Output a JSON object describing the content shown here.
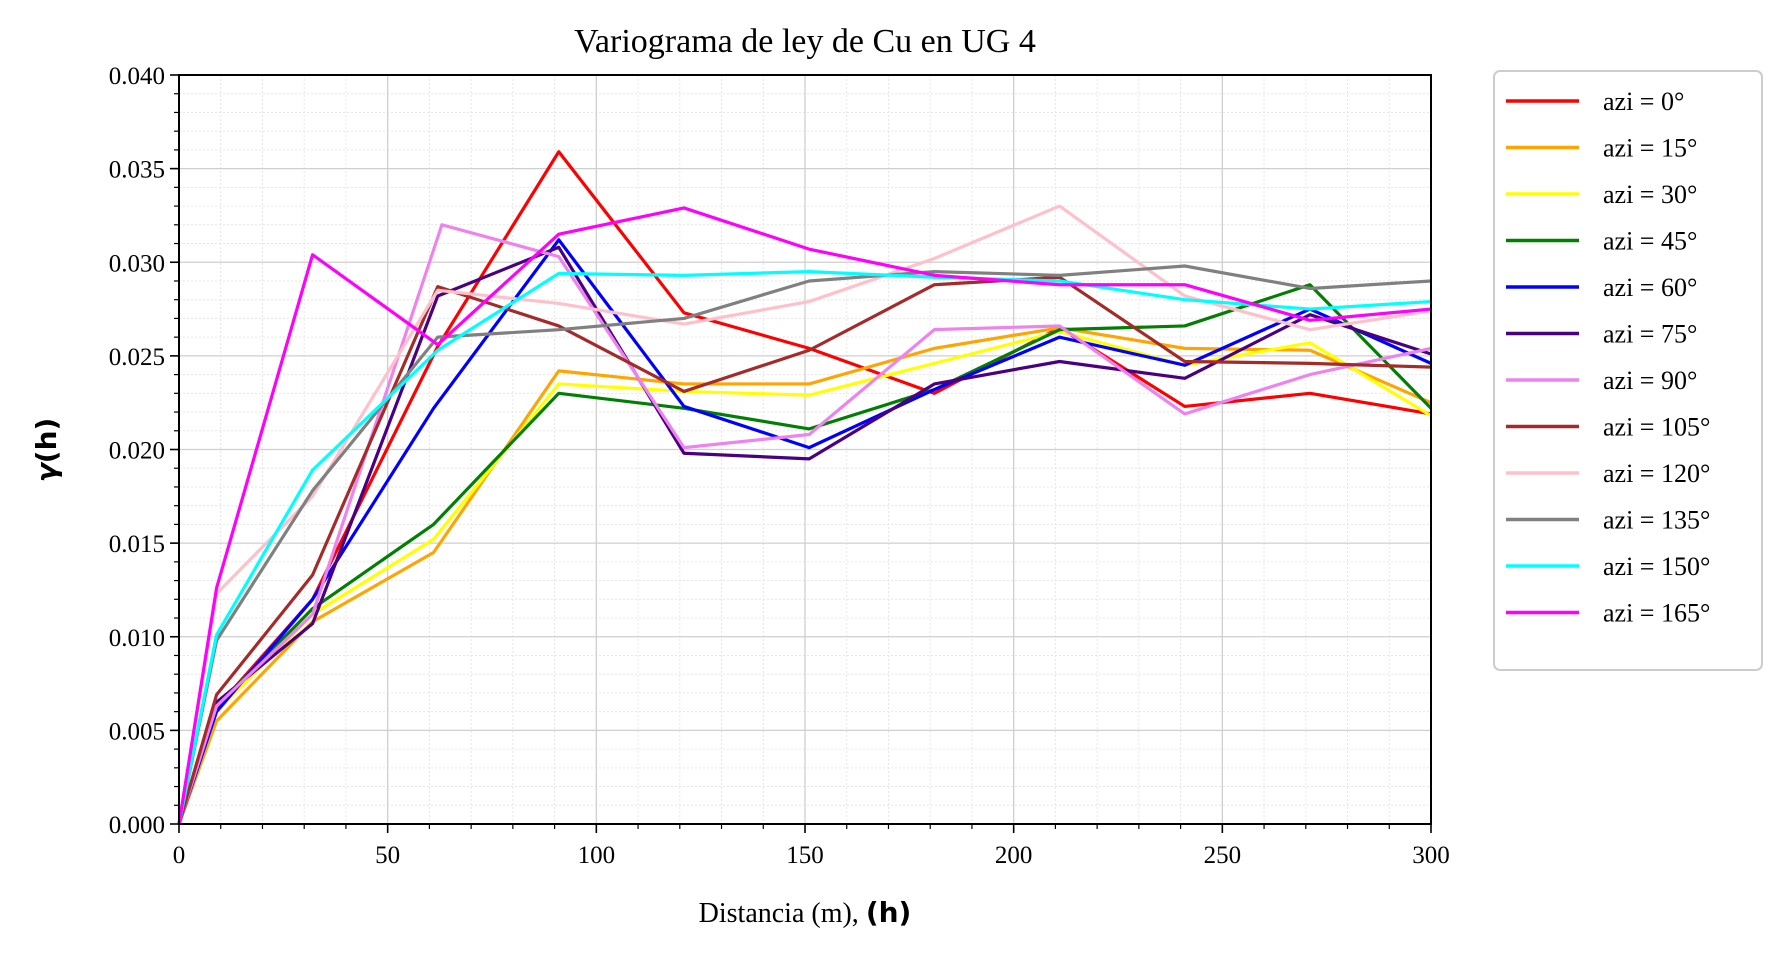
{
  "chart_data": {
    "type": "line",
    "title": "Variograma de ley de Cu en UG 4",
    "xlabel": "Distancia (m), ",
    "xlabel_bold": "(h)",
    "ylabel_prefix": "γ",
    "ylabel_bold": "(h)",
    "xlim": [
      0,
      300
    ],
    "ylim": [
      0,
      0.04
    ],
    "x_ticks": [
      0,
      50,
      100,
      150,
      200,
      250,
      300
    ],
    "x_tick_labels": [
      "0",
      "50",
      "100",
      "150",
      "200",
      "250",
      "300"
    ],
    "y_ticks": [
      0,
      0.005,
      0.01,
      0.015,
      0.02,
      0.025,
      0.03,
      0.035,
      0.04
    ],
    "y_tick_labels": [
      "0.000",
      "0.005",
      "0.010",
      "0.015",
      "0.020",
      "0.025",
      "0.030",
      "0.035",
      "0.040"
    ],
    "grid": true,
    "minor_grid": true,
    "legend_position": "outside-right",
    "series": [
      {
        "name": "azi = 0°",
        "color": "#ff0000",
        "x": [
          0,
          9,
          32,
          62,
          91,
          121,
          151,
          181,
          211,
          241,
          271,
          300
        ],
        "y": [
          0,
          0.0062,
          0.012,
          0.0255,
          0.0359,
          0.0273,
          0.0254,
          0.023,
          0.0265,
          0.0223,
          0.023,
          0.0219
        ]
      },
      {
        "name": "azi = 15°",
        "color": "#ffa500",
        "x": [
          0,
          9,
          32,
          61,
          91,
          121,
          151,
          181,
          211,
          241,
          271,
          300
        ],
        "y": [
          0,
          0.0055,
          0.0108,
          0.0145,
          0.0242,
          0.0235,
          0.0235,
          0.0254,
          0.0265,
          0.0254,
          0.0253,
          0.0225
        ]
      },
      {
        "name": "azi = 30°",
        "color": "#ffff00",
        "x": [
          0,
          9,
          32,
          61,
          91,
          121,
          151,
          181,
          211,
          241,
          271,
          300
        ],
        "y": [
          0,
          0.006,
          0.0112,
          0.0152,
          0.0235,
          0.0231,
          0.0229,
          0.0246,
          0.0263,
          0.0245,
          0.0257,
          0.0218
        ]
      },
      {
        "name": "azi = 45°",
        "color": "#008000",
        "x": [
          0,
          9,
          32,
          61,
          91,
          121,
          151,
          181,
          211,
          241,
          271,
          300
        ],
        "y": [
          0,
          0.0063,
          0.0115,
          0.016,
          0.023,
          0.0222,
          0.0211,
          0.0232,
          0.0264,
          0.0266,
          0.0288,
          0.0222
        ]
      },
      {
        "name": "azi = 60°",
        "color": "#0000ff",
        "x": [
          0,
          9,
          32,
          61,
          91,
          121,
          151,
          181,
          211,
          241,
          271,
          300
        ],
        "y": [
          0,
          0.006,
          0.012,
          0.0222,
          0.0312,
          0.0223,
          0.0201,
          0.0232,
          0.026,
          0.0245,
          0.0275,
          0.0246
        ]
      },
      {
        "name": "azi = 75°",
        "color": "#4b0082",
        "x": [
          0,
          9,
          32,
          62,
          91,
          121,
          151,
          181,
          211,
          241,
          271,
          300
        ],
        "y": [
          0,
          0.0065,
          0.0107,
          0.0282,
          0.0308,
          0.0198,
          0.0195,
          0.0235,
          0.0247,
          0.0238,
          0.0272,
          0.0251
        ]
      },
      {
        "name": "azi = 90°",
        "color": "#ee82ee",
        "x": [
          0,
          9,
          32,
          63,
          91,
          121,
          151,
          181,
          211,
          241,
          271,
          300
        ],
        "y": [
          0,
          0.0063,
          0.0112,
          0.032,
          0.0303,
          0.0201,
          0.0208,
          0.0264,
          0.0266,
          0.0219,
          0.024,
          0.0254
        ]
      },
      {
        "name": "azi = 105°",
        "color": "#a52a2a",
        "x": [
          0,
          9,
          32,
          62,
          91,
          121,
          151,
          181,
          211,
          241,
          271,
          300
        ],
        "y": [
          0,
          0.0069,
          0.0133,
          0.0287,
          0.0266,
          0.0231,
          0.0253,
          0.0288,
          0.0292,
          0.0247,
          0.0246,
          0.0244
        ]
      },
      {
        "name": "azi = 120°",
        "color": "#ffc0cb",
        "x": [
          0,
          9,
          32,
          62,
          91,
          121,
          151,
          181,
          211,
          241,
          271,
          300
        ],
        "y": [
          0,
          0.0123,
          0.0175,
          0.0285,
          0.0278,
          0.0267,
          0.0279,
          0.0302,
          0.033,
          0.0282,
          0.0264,
          0.0274
        ]
      },
      {
        "name": "azi = 135°",
        "color": "#808080",
        "x": [
          0,
          9,
          32,
          62,
          91,
          121,
          151,
          181,
          211,
          241,
          271,
          300
        ],
        "y": [
          0,
          0.0098,
          0.0178,
          0.026,
          0.0264,
          0.027,
          0.029,
          0.0295,
          0.0293,
          0.0298,
          0.0286,
          0.029
        ]
      },
      {
        "name": "azi = 150°",
        "color": "#00ffff",
        "x": [
          0,
          9,
          32,
          62,
          91,
          121,
          151,
          181,
          211,
          241,
          271,
          300
        ],
        "y": [
          0,
          0.0101,
          0.0189,
          0.0253,
          0.0294,
          0.0293,
          0.0295,
          0.0292,
          0.029,
          0.028,
          0.0275,
          0.0279
        ]
      },
      {
        "name": "azi = 165°",
        "color": "#ff00ff",
        "x": [
          0,
          9,
          32,
          62,
          91,
          121,
          151,
          181,
          211,
          241,
          271,
          300
        ],
        "y": [
          0,
          0.0126,
          0.0304,
          0.0256,
          0.0315,
          0.0329,
          0.0307,
          0.0293,
          0.0288,
          0.0288,
          0.0269,
          0.0275
        ]
      }
    ]
  }
}
